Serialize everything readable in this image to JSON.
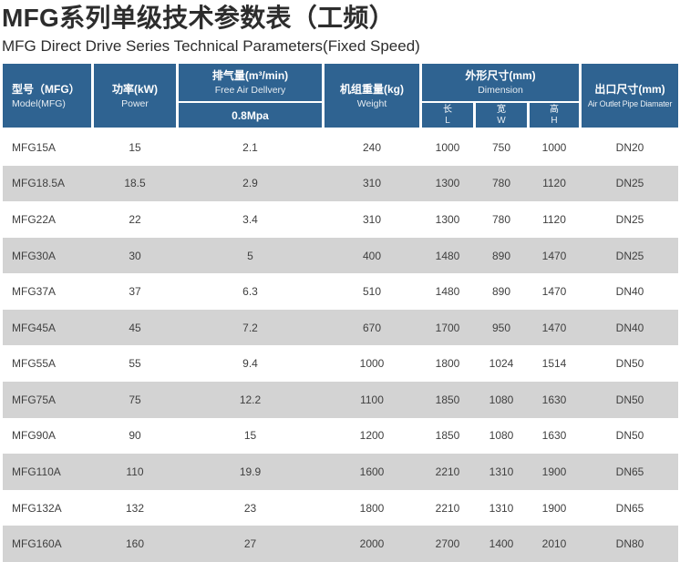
{
  "title": "MFG系列单级技术参数表（工频）",
  "subtitle": "MFG Direct Drive Series Technical Parameters(Fixed Speed)",
  "colors": {
    "header_blue": "#2f6391",
    "row_alt_gray": "#d3d3d3",
    "title_text": "#2d2d2d",
    "cell_text": "#3f3f3f"
  },
  "table": {
    "header": {
      "model_cn": "型号（MFG）",
      "model_en": "Model(MFG)",
      "power_cn": "功率(kW)",
      "power_en": "Power",
      "fad_cn": "排气量(m³/min)",
      "fad_en": "Free Air Dellvery",
      "fad_sub": "0.8Mpa",
      "weight_cn": "机组重量(kg)",
      "weight_en": "Weight",
      "dim_cn": "外形尺寸(mm)",
      "dim_en": "Dimension",
      "dim_sub": [
        {
          "cn": "长",
          "en": "L"
        },
        {
          "cn": "宽",
          "en": "W"
        },
        {
          "cn": "高",
          "en": "H"
        }
      ],
      "outlet_cn": "出口尺寸(mm)",
      "outlet_en": "Air Outlet Pipe Diamater"
    },
    "rows": [
      {
        "model": "MFG15A",
        "power": "15",
        "fad": "2.1",
        "weight": "240",
        "length": "1000",
        "width": "750",
        "height": "1000",
        "outlet": "DN20"
      },
      {
        "model": "MFG18.5A",
        "power": "18.5",
        "fad": "2.9",
        "weight": "310",
        "length": "1300",
        "width": "780",
        "height": "1120",
        "outlet": "DN25"
      },
      {
        "model": "MFG22A",
        "power": "22",
        "fad": "3.4",
        "weight": "310",
        "length": "1300",
        "width": "780",
        "height": "1120",
        "outlet": "DN25"
      },
      {
        "model": "MFG30A",
        "power": "30",
        "fad": "5",
        "weight": "400",
        "length": "1480",
        "width": "890",
        "height": "1470",
        "outlet": "DN25"
      },
      {
        "model": "MFG37A",
        "power": "37",
        "fad": "6.3",
        "weight": "510",
        "length": "1480",
        "width": "890",
        "height": "1470",
        "outlet": "DN40"
      },
      {
        "model": "MFG45A",
        "power": "45",
        "fad": "7.2",
        "weight": "670",
        "length": "1700",
        "width": "950",
        "height": "1470",
        "outlet": "DN40"
      },
      {
        "model": "MFG55A",
        "power": "55",
        "fad": "9.4",
        "weight": "1000",
        "length": "1800",
        "width": "1024",
        "height": "1514",
        "outlet": "DN50"
      },
      {
        "model": "MFG75A",
        "power": "75",
        "fad": "12.2",
        "weight": "1100",
        "length": "1850",
        "width": "1080",
        "height": "1630",
        "outlet": "DN50"
      },
      {
        "model": "MFG90A",
        "power": "90",
        "fad": "15",
        "weight": "1200",
        "length": "1850",
        "width": "1080",
        "height": "1630",
        "outlet": "DN50"
      },
      {
        "model": "MFG110A",
        "power": "110",
        "fad": "19.9",
        "weight": "1600",
        "length": "2210",
        "width": "1310",
        "height": "1900",
        "outlet": "DN65"
      },
      {
        "model": "MFG132A",
        "power": "132",
        "fad": "23",
        "weight": "1800",
        "length": "2210",
        "width": "1310",
        "height": "1900",
        "outlet": "DN65"
      },
      {
        "model": "MFG160A",
        "power": "160",
        "fad": "27",
        "weight": "2000",
        "length": "2700",
        "width": "1400",
        "height": "2010",
        "outlet": "DN80"
      }
    ]
  }
}
